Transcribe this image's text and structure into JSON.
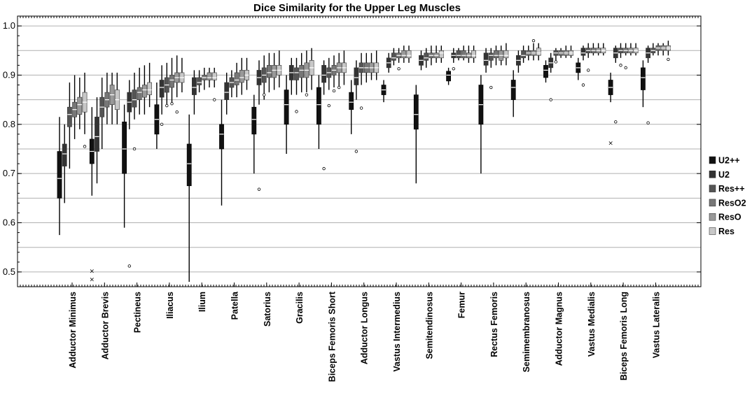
{
  "chart_data": {
    "type": "box",
    "title": "Dice Similarity for the Upper Leg Muscles",
    "xlabel": "",
    "ylabel": "",
    "ylim": [
      0.47,
      1.02
    ],
    "yticks": [
      0.5,
      0.6,
      0.7,
      0.8,
      0.9,
      1.0
    ],
    "ytick_labels": [
      "0.5",
      "0.6",
      "0.7",
      "0.8",
      "0.9",
      "1.0"
    ],
    "grid": true,
    "legend_position": "right",
    "categories": [
      "Adductor Minimus",
      "Adductor Brevis",
      "Pectineus",
      "Iliacus",
      "Ilium",
      "Patella",
      "Satorius",
      "Gracilis",
      "Biceps Femoris Short",
      "Adductor Longus",
      "Vastus Intermedius",
      "Semitendinosus",
      "Femur",
      "Rectus Femoris",
      "Semimembranosus",
      "Adductor Magnus",
      "Vastus Medialis",
      "Biceps Femoris Long",
      "Vastus Lateralis"
    ],
    "series": [
      {
        "name": "U2++",
        "color": "#111111",
        "boxes": [
          [
            0.575,
            0.65,
            0.69,
            0.745,
            0.815
          ],
          [
            0.655,
            0.72,
            0.745,
            0.77,
            0.835
          ],
          [
            0.59,
            0.7,
            0.75,
            0.805,
            0.84
          ],
          [
            0.75,
            0.78,
            0.81,
            0.84,
            0.885
          ],
          [
            0.48,
            0.675,
            0.72,
            0.76,
            0.82
          ],
          [
            0.635,
            0.75,
            0.78,
            0.8,
            0.85
          ],
          [
            0.7,
            0.78,
            0.81,
            0.835,
            0.86
          ],
          [
            0.74,
            0.8,
            0.84,
            0.87,
            0.9
          ],
          [
            0.75,
            0.8,
            0.84,
            0.875,
            0.9
          ],
          [
            0.78,
            0.83,
            0.845,
            0.865,
            0.89
          ],
          [
            0.845,
            0.86,
            0.87,
            0.88,
            0.89
          ],
          [
            0.68,
            0.79,
            0.82,
            0.86,
            0.88
          ],
          [
            0.88,
            0.888,
            0.9,
            0.908,
            0.915
          ],
          [
            0.7,
            0.8,
            0.84,
            0.88,
            0.9
          ],
          [
            0.815,
            0.85,
            0.875,
            0.89,
            0.91
          ],
          [
            0.885,
            0.895,
            0.91,
            0.92,
            0.93
          ],
          [
            0.89,
            0.905,
            0.915,
            0.925,
            0.935
          ],
          [
            0.845,
            0.86,
            0.875,
            0.89,
            0.905
          ],
          [
            0.835,
            0.87,
            0.895,
            0.915,
            0.93
          ]
        ],
        "outliers": [
          [],
          [
            0.502,
            0.485
          ],
          [],
          [],
          [],
          [],
          [],
          [],
          [],
          [],
          [],
          [],
          [],
          [],
          [],
          [],
          [],
          [
            0.762
          ],
          []
        ]
      },
      {
        "name": "U2",
        "color": "#333333",
        "boxes": [
          [
            0.64,
            0.715,
            0.74,
            0.76,
            0.8
          ],
          [
            0.68,
            0.745,
            0.775,
            0.815,
            0.855
          ],
          [
            0.79,
            0.825,
            0.845,
            0.865,
            0.89
          ],
          [
            0.82,
            0.855,
            0.875,
            0.89,
            0.92
          ],
          [
            0.82,
            0.86,
            0.875,
            0.895,
            0.91
          ],
          [
            0.82,
            0.85,
            0.865,
            0.885,
            0.905
          ],
          [
            0.84,
            0.88,
            0.895,
            0.91,
            0.93
          ],
          [
            0.86,
            0.89,
            0.905,
            0.92,
            0.935
          ],
          [
            0.86,
            0.885,
            0.9,
            0.92,
            0.93
          ],
          [
            0.85,
            0.88,
            0.895,
            0.915,
            0.93
          ],
          [
            0.905,
            0.915,
            0.925,
            0.935,
            0.945
          ],
          [
            0.91,
            0.92,
            0.93,
            0.94,
            0.95
          ],
          [
            0.925,
            0.935,
            0.94,
            0.945,
            0.955
          ],
          [
            0.905,
            0.92,
            0.93,
            0.945,
            0.955
          ],
          [
            0.905,
            0.92,
            0.93,
            0.94,
            0.95
          ],
          [
            0.905,
            0.915,
            0.925,
            0.935,
            0.945
          ],
          [
            0.93,
            0.94,
            0.945,
            0.955,
            0.96
          ],
          [
            0.925,
            0.935,
            0.945,
            0.955,
            0.96
          ],
          [
            0.925,
            0.935,
            0.945,
            0.955,
            0.96
          ]
        ],
        "outliers": [
          [],
          [],
          [
            0.512
          ],
          [
            0.8
          ],
          [],
          [],
          [
            0.668
          ],
          [],
          [
            0.71
          ],
          [
            0.745
          ],
          [],
          [],
          [
            0.913
          ],
          [],
          [],
          [
            0.85
          ],
          [
            0.88
          ],
          [
            0.805
          ],
          [
            0.803
          ]
        ]
      },
      {
        "name": "Res++",
        "color": "#555555",
        "boxes": [
          [
            0.71,
            0.795,
            0.82,
            0.835,
            0.885
          ],
          [
            0.75,
            0.815,
            0.835,
            0.855,
            0.895
          ],
          [
            0.81,
            0.835,
            0.85,
            0.87,
            0.905
          ],
          [
            0.835,
            0.865,
            0.88,
            0.895,
            0.925
          ],
          [
            0.865,
            0.88,
            0.885,
            0.895,
            0.91
          ],
          [
            0.855,
            0.875,
            0.885,
            0.895,
            0.91
          ],
          [
            0.85,
            0.885,
            0.9,
            0.915,
            0.94
          ],
          [
            0.86,
            0.89,
            0.905,
            0.915,
            0.935
          ],
          [
            0.87,
            0.895,
            0.905,
            0.915,
            0.935
          ],
          [
            0.88,
            0.905,
            0.915,
            0.925,
            0.945
          ],
          [
            0.92,
            0.93,
            0.935,
            0.945,
            0.955
          ],
          [
            0.915,
            0.93,
            0.935,
            0.945,
            0.955
          ],
          [
            0.93,
            0.935,
            0.94,
            0.95,
            0.955
          ],
          [
            0.915,
            0.93,
            0.94,
            0.945,
            0.955
          ],
          [
            0.925,
            0.935,
            0.94,
            0.95,
            0.96
          ],
          [
            0.93,
            0.94,
            0.945,
            0.95,
            0.955
          ],
          [
            0.935,
            0.945,
            0.95,
            0.955,
            0.965
          ],
          [
            0.935,
            0.945,
            0.95,
            0.955,
            0.965
          ],
          [
            0.94,
            0.945,
            0.95,
            0.955,
            0.965
          ]
        ],
        "outliers": [
          [],
          [],
          [
            0.75
          ],
          [
            0.838
          ],
          [],
          [],
          [
            0.86
          ],
          [
            0.826
          ],
          [
            0.838
          ],
          [
            0.833
          ],
          [],
          [],
          [],
          [
            0.875
          ],
          [],
          [
            0.927
          ],
          [
            0.91
          ],
          [
            0.92
          ],
          []
        ]
      },
      {
        "name": "ResO2",
        "color": "#777777",
        "boxes": [
          [
            0.77,
            0.815,
            0.83,
            0.845,
            0.9
          ],
          [
            0.8,
            0.835,
            0.85,
            0.865,
            0.905
          ],
          [
            0.82,
            0.85,
            0.865,
            0.875,
            0.915
          ],
          [
            0.845,
            0.875,
            0.89,
            0.9,
            0.935
          ],
          [
            0.87,
            0.89,
            0.895,
            0.9,
            0.915
          ],
          [
            0.855,
            0.88,
            0.89,
            0.905,
            0.925
          ],
          [
            0.865,
            0.895,
            0.905,
            0.92,
            0.945
          ],
          [
            0.865,
            0.895,
            0.91,
            0.92,
            0.945
          ],
          [
            0.875,
            0.9,
            0.91,
            0.92,
            0.94
          ],
          [
            0.885,
            0.905,
            0.915,
            0.925,
            0.945
          ],
          [
            0.925,
            0.935,
            0.94,
            0.945,
            0.955
          ],
          [
            0.92,
            0.935,
            0.94,
            0.945,
            0.96
          ],
          [
            0.93,
            0.935,
            0.94,
            0.95,
            0.96
          ],
          [
            0.92,
            0.935,
            0.94,
            0.95,
            0.96
          ],
          [
            0.93,
            0.94,
            0.945,
            0.95,
            0.96
          ],
          [
            0.935,
            0.94,
            0.945,
            0.95,
            0.955
          ],
          [
            0.94,
            0.945,
            0.95,
            0.955,
            0.965
          ],
          [
            0.94,
            0.945,
            0.95,
            0.955,
            0.965
          ],
          [
            0.94,
            0.95,
            0.955,
            0.96,
            0.965
          ]
        ],
        "outliers": [
          [],
          [],
          [],
          [
            0.842
          ],
          [],
          [],
          [],
          [],
          [
            0.868
          ],
          [],
          [
            0.913
          ],
          [],
          [],
          [],
          [],
          [],
          [],
          [
            0.915
          ],
          []
        ]
      },
      {
        "name": "ResO",
        "color": "#999999",
        "boxes": [
          [
            0.79,
            0.82,
            0.84,
            0.855,
            0.895
          ],
          [
            0.8,
            0.84,
            0.86,
            0.88,
            0.905
          ],
          [
            0.82,
            0.855,
            0.87,
            0.88,
            0.92
          ],
          [
            0.855,
            0.885,
            0.895,
            0.905,
            0.94
          ],
          [
            0.875,
            0.89,
            0.895,
            0.905,
            0.915
          ],
          [
            0.86,
            0.885,
            0.895,
            0.91,
            0.935
          ],
          [
            0.87,
            0.895,
            0.91,
            0.92,
            0.945
          ],
          [
            0.865,
            0.895,
            0.91,
            0.925,
            0.95
          ],
          [
            0.875,
            0.905,
            0.915,
            0.925,
            0.945
          ],
          [
            0.89,
            0.905,
            0.915,
            0.925,
            0.945
          ],
          [
            0.925,
            0.935,
            0.94,
            0.95,
            0.96
          ],
          [
            0.925,
            0.935,
            0.94,
            0.945,
            0.96
          ],
          [
            0.925,
            0.935,
            0.94,
            0.945,
            0.96
          ],
          [
            0.92,
            0.93,
            0.94,
            0.95,
            0.96
          ],
          [
            0.93,
            0.94,
            0.945,
            0.95,
            0.965
          ],
          [
            0.935,
            0.94,
            0.945,
            0.95,
            0.96
          ],
          [
            0.94,
            0.945,
            0.95,
            0.955,
            0.965
          ],
          [
            0.94,
            0.945,
            0.95,
            0.955,
            0.965
          ],
          [
            0.94,
            0.95,
            0.955,
            0.96,
            0.965
          ]
        ],
        "outliers": [
          [],
          [],
          [],
          [
            0.825
          ],
          [],
          [],
          [],
          [
            0.86
          ],
          [
            0.875
          ],
          [],
          [],
          [],
          [],
          [],
          [
            0.97
          ],
          [],
          [],
          [],
          []
        ]
      },
      {
        "name": "Res",
        "color": "#c8c8c8",
        "boxes": [
          [
            0.78,
            0.825,
            0.845,
            0.865,
            0.905
          ],
          [
            0.8,
            0.83,
            0.85,
            0.87,
            0.905
          ],
          [
            0.835,
            0.86,
            0.87,
            0.885,
            0.925
          ],
          [
            0.865,
            0.885,
            0.895,
            0.905,
            0.935
          ],
          [
            0.875,
            0.89,
            0.895,
            0.905,
            0.915
          ],
          [
            0.87,
            0.89,
            0.9,
            0.91,
            0.935
          ],
          [
            0.875,
            0.9,
            0.91,
            0.92,
            0.95
          ],
          [
            0.87,
            0.9,
            0.915,
            0.93,
            0.955
          ],
          [
            0.88,
            0.905,
            0.915,
            0.925,
            0.95
          ],
          [
            0.89,
            0.905,
            0.915,
            0.925,
            0.95
          ],
          [
            0.925,
            0.935,
            0.94,
            0.95,
            0.96
          ],
          [
            0.925,
            0.935,
            0.945,
            0.95,
            0.96
          ],
          [
            0.925,
            0.935,
            0.94,
            0.95,
            0.96
          ],
          [
            0.92,
            0.935,
            0.94,
            0.95,
            0.965
          ],
          [
            0.93,
            0.94,
            0.945,
            0.955,
            0.965
          ],
          [
            0.935,
            0.94,
            0.945,
            0.95,
            0.96
          ],
          [
            0.94,
            0.945,
            0.95,
            0.955,
            0.965
          ],
          [
            0.94,
            0.945,
            0.95,
            0.955,
            0.965
          ],
          [
            0.94,
            0.95,
            0.955,
            0.96,
            0.97
          ]
        ],
        "outliers": [
          [
            0.755
          ],
          [],
          [],
          [],
          [
            0.85
          ],
          [],
          [],
          [],
          [],
          [],
          [],
          [],
          [],
          [],
          [],
          [],
          [],
          [],
          [
            0.932
          ]
        ]
      }
    ]
  }
}
